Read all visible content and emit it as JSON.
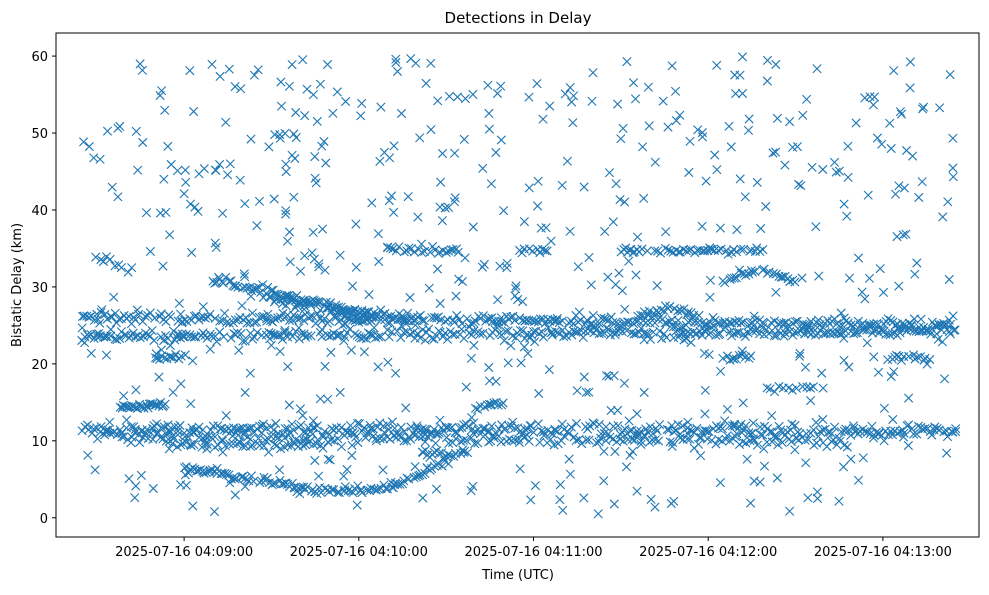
{
  "chart_data": {
    "type": "scatter",
    "title": "Detections in Delay",
    "xlabel": "Time (UTC)",
    "ylabel": "Bistatic Delay (km)",
    "marker": "x",
    "marker_color": "#1f77b4",
    "grid": false,
    "x_start": "2025-07-16 04:08:25",
    "x_end": "2025-07-16 04:13:25",
    "xlim": [
      "2025-07-16 04:08:16",
      "2025-07-16 04:13:33"
    ],
    "ylim": [
      -2.5,
      63
    ],
    "xticks": [
      {
        "value": "2025-07-16 04:09:00",
        "label": "2025-07-16 04:09:00"
      },
      {
        "value": "2025-07-16 04:10:00",
        "label": "2025-07-16 04:10:00"
      },
      {
        "value": "2025-07-16 04:11:00",
        "label": "2025-07-16 04:11:00"
      },
      {
        "value": "2025-07-16 04:12:00",
        "label": "2025-07-16 04:12:00"
      },
      {
        "value": "2025-07-16 04:13:00",
        "label": "2025-07-16 04:13:00"
      }
    ],
    "yticks": [
      {
        "value": 0,
        "label": "0"
      },
      {
        "value": 10,
        "label": "10"
      },
      {
        "value": 20,
        "label": "20"
      },
      {
        "value": 30,
        "label": "30"
      },
      {
        "value": 40,
        "label": "40"
      },
      {
        "value": 50,
        "label": "50"
      },
      {
        "value": 60,
        "label": "60"
      }
    ],
    "tracks": [
      {
        "start": "2025-07-16 04:08:25",
        "end": "2025-07-16 04:13:25",
        "y0": 26.2,
        "y1": 25.0,
        "kind": "linear",
        "step_s": 0.8,
        "jitter": 0.35
      },
      {
        "start": "2025-07-16 04:08:25",
        "end": "2025-07-16 04:13:25",
        "y0": 23.5,
        "y1": 24.3,
        "kind": "linear",
        "step_s": 0.8,
        "jitter": 0.35
      },
      {
        "start": "2025-07-16 04:08:25",
        "end": "2025-07-16 04:13:25",
        "y0": 11.5,
        "y1": 11.3,
        "kind": "linear",
        "step_s": 0.8,
        "jitter": 0.45
      },
      {
        "start": "2025-07-16 04:08:30",
        "end": "2025-07-16 04:12:50",
        "y0": 10.6,
        "y1": 9.8,
        "kind": "linear",
        "step_s": 1.2,
        "jitter": 0.35
      },
      {
        "start": "2025-07-16 04:08:55",
        "end": "2025-07-16 04:09:50",
        "y0": 9.6,
        "y1": 9.3,
        "kind": "linear",
        "step_s": 1.2,
        "jitter": 0.25
      },
      {
        "start": "2025-07-16 04:09:00",
        "end": "2025-07-16 04:09:38",
        "y0": 6.5,
        "y1": 4.2,
        "kind": "linear",
        "step_s": 0.7,
        "jitter": 0.25
      },
      {
        "start": "2025-07-16 04:09:38",
        "end": "2025-07-16 04:09:58",
        "y0": 3.8,
        "y1": 3.4,
        "kind": "linear",
        "step_s": 0.7,
        "jitter": 0.25
      },
      {
        "start": "2025-07-16 04:09:58",
        "end": "2025-07-16 04:10:30",
        "y0": 3.5,
        "y1": 7.5,
        "kind": "quad",
        "step_s": 0.8,
        "jitter": 0.25
      },
      {
        "start": "2025-07-16 04:08:38",
        "end": "2025-07-16 04:08:54",
        "y0": 14.3,
        "y1": 14.8,
        "kind": "linear",
        "step_s": 0.6,
        "jitter": 0.2
      },
      {
        "start": "2025-07-16 04:10:22",
        "end": "2025-07-16 04:10:38",
        "y0": 8.2,
        "y1": 8.4,
        "kind": "linear",
        "step_s": 0.8,
        "jitter": 0.25
      },
      {
        "start": "2025-07-16 04:10:40",
        "end": "2025-07-16 04:10:50",
        "y0": 14.4,
        "y1": 14.8,
        "kind": "linear",
        "step_s": 0.8,
        "jitter": 0.2
      },
      {
        "start": "2025-07-16 04:09:10",
        "end": "2025-07-16 04:10:05",
        "y0": 31.0,
        "y1": 26.0,
        "kind": "linear",
        "step_s": 0.6,
        "jitter": 0.3
      },
      {
        "start": "2025-07-16 04:09:30",
        "end": "2025-07-16 04:10:20",
        "y0": 28.5,
        "y1": 25.5,
        "kind": "linear",
        "step_s": 0.8,
        "jitter": 0.3
      },
      {
        "start": "2025-07-16 04:10:10",
        "end": "2025-07-16 04:10:35",
        "y0": 34.7,
        "y1": 34.7,
        "kind": "linear",
        "step_s": 0.9,
        "jitter": 0.2
      },
      {
        "start": "2025-07-16 04:10:55",
        "end": "2025-07-16 04:11:05",
        "y0": 34.7,
        "y1": 34.7,
        "kind": "linear",
        "step_s": 0.9,
        "jitter": 0.2
      },
      {
        "start": "2025-07-16 04:11:30",
        "end": "2025-07-16 04:12:20",
        "y0": 34.7,
        "y1": 34.7,
        "kind": "linear",
        "step_s": 0.9,
        "jitter": 0.2
      },
      {
        "start": "2025-07-16 04:08:50",
        "end": "2025-07-16 04:09:03",
        "y0": 20.8,
        "y1": 20.8,
        "kind": "linear",
        "step_s": 0.8,
        "jitter": 0.2
      },
      {
        "start": "2025-07-16 04:12:05",
        "end": "2025-07-16 04:12:15",
        "y0": 20.8,
        "y1": 20.8,
        "kind": "linear",
        "step_s": 0.8,
        "jitter": 0.2
      },
      {
        "start": "2025-07-16 04:13:00",
        "end": "2025-07-16 04:13:15",
        "y0": 20.8,
        "y1": 20.8,
        "kind": "linear",
        "step_s": 0.8,
        "jitter": 0.2
      },
      {
        "start": "2025-07-16 04:12:05",
        "end": "2025-07-16 04:12:30",
        "y0": 30.5,
        "y1": 30.5,
        "kind": "bump",
        "peak": 1.5,
        "step_s": 0.8,
        "jitter": 0.2
      },
      {
        "start": "2025-07-16 04:11:35",
        "end": "2025-07-16 04:11:55",
        "y0": 26.3,
        "y1": 26.3,
        "kind": "bump",
        "peak": 0.8,
        "step_s": 0.8,
        "jitter": 0.25
      },
      {
        "start": "2025-07-16 04:12:20",
        "end": "2025-07-16 04:12:40",
        "y0": 16.8,
        "y1": 16.8,
        "kind": "linear",
        "step_s": 1.5,
        "jitter": 0.2
      },
      {
        "start": "2025-07-16 04:08:30",
        "end": "2025-07-16 04:08:42",
        "y0": 33.5,
        "y1": 33.0,
        "kind": "linear",
        "step_s": 1.2,
        "jitter": 0.4
      }
    ],
    "scatter_noise": {
      "count": 620,
      "seed": 20250716,
      "start": "2025-07-16 04:08:25",
      "end": "2025-07-16 04:13:25",
      "ymin": 0.5,
      "ymax": 60
    }
  }
}
